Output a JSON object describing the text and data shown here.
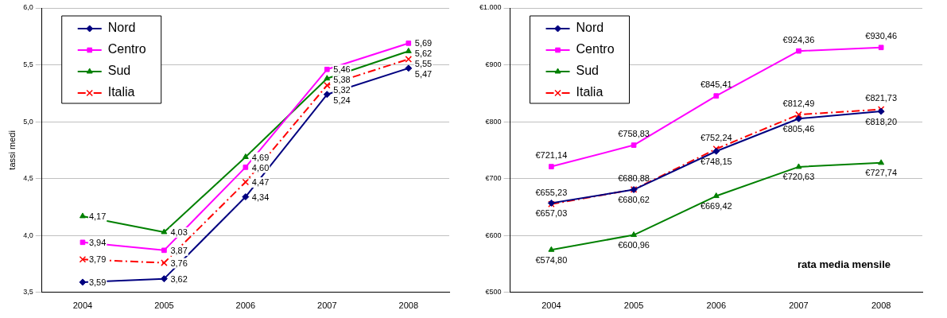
{
  "chart_data": [
    {
      "type": "line",
      "ylabel": "tassi medi",
      "categories": [
        "2004",
        "2005",
        "2006",
        "2007",
        "2008"
      ],
      "ylim": [
        3.5,
        6.0
      ],
      "yticks": [
        {
          "value": 3.5,
          "label": "3,5"
        },
        {
          "value": 4.0,
          "label": "4,0"
        },
        {
          "value": 4.5,
          "label": "4,5"
        },
        {
          "value": 5.0,
          "label": "5,0"
        },
        {
          "value": 5.5,
          "label": "5,5"
        },
        {
          "value": 6.0,
          "label": "6,0"
        }
      ],
      "grid": "y",
      "legend": "top left",
      "series": [
        {
          "name": "Nord",
          "color": "#000080",
          "marker": "diamond",
          "line_style": "solid",
          "values": [
            3.59,
            3.62,
            4.34,
            5.24,
            5.47
          ],
          "value_labels": [
            "3,59",
            "3,62",
            "4,34",
            "5,24",
            "5,47"
          ]
        },
        {
          "name": "Centro",
          "color": "#ff00ff",
          "marker": "square",
          "line_style": "solid",
          "values": [
            3.94,
            3.87,
            4.6,
            5.46,
            5.69
          ],
          "value_labels": [
            "3,94",
            "3,87",
            "4,60",
            "5,46",
            "5,69"
          ]
        },
        {
          "name": "Sud",
          "color": "#008000",
          "marker": "triangle",
          "line_style": "solid",
          "values": [
            4.17,
            4.03,
            4.69,
            5.38,
            5.62
          ],
          "value_labels": [
            "4,17",
            "4,03",
            "4,69",
            "5,38",
            "5,62"
          ]
        },
        {
          "name": "Italia",
          "color": "#ff0000",
          "marker": "cross",
          "line_style": "dashed",
          "values": [
            3.79,
            3.76,
            4.47,
            5.32,
            5.55
          ],
          "value_labels": [
            "3,79",
            "3,76",
            "4,47",
            "5,32",
            "5,55"
          ]
        }
      ]
    },
    {
      "type": "line",
      "categories": [
        "2004",
        "2005",
        "2006",
        "2007",
        "2008"
      ],
      "ylim": [
        500,
        1000
      ],
      "yticks": [
        {
          "value": 500,
          "label": "€500"
        },
        {
          "value": 600,
          "label": "€600"
        },
        {
          "value": 700,
          "label": "€700"
        },
        {
          "value": 800,
          "label": "€800"
        },
        {
          "value": 900,
          "label": "€900"
        },
        {
          "value": 1000,
          "label": "€1.000"
        }
      ],
      "grid": "y",
      "legend": "top left",
      "annotations": [
        "rata media mensile"
      ],
      "series": [
        {
          "name": "Nord",
          "color": "#000080",
          "marker": "diamond",
          "line_style": "solid",
          "values": [
            657.03,
            680.62,
            748.15,
            805.46,
            818.2
          ],
          "value_labels": [
            "€657,03",
            "€680,62",
            "€748,15",
            "€805,46",
            "€818,20"
          ]
        },
        {
          "name": "Centro",
          "color": "#ff00ff",
          "marker": "square",
          "line_style": "solid",
          "values": [
            721.14,
            758.83,
            845.41,
            924.36,
            930.46
          ],
          "value_labels": [
            "€721,14",
            "€758,83",
            "€845,41",
            "€924,36",
            "€930,46"
          ]
        },
        {
          "name": "Sud",
          "color": "#008000",
          "marker": "triangle",
          "line_style": "solid",
          "values": [
            574.8,
            600.96,
            669.42,
            720.63,
            727.74
          ],
          "value_labels": [
            "€574,80",
            "€600,96",
            "€669,42",
            "€720,63",
            "€727,74"
          ]
        },
        {
          "name": "Italia",
          "color": "#ff0000",
          "marker": "cross",
          "line_style": "dashed",
          "values": [
            655.23,
            680.88,
            752.24,
            812.49,
            821.73
          ],
          "value_labels": [
            "€655,23",
            "€680,88",
            "€752,24",
            "€812,49",
            "€821,73"
          ]
        }
      ]
    }
  ]
}
